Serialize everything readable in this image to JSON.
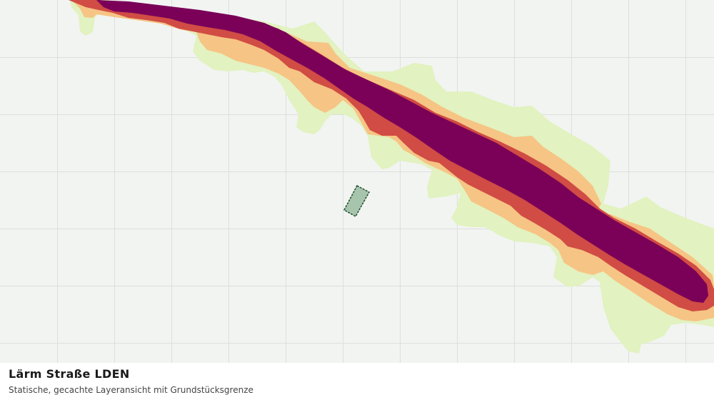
{
  "layer": {
    "title": "Lärm Straße LDEN",
    "subtitle": "Statische, gecachte Layeransicht mit Grundstücksgrenze"
  },
  "colors": {
    "background": "#f2f4f2",
    "grid": "#dcdfdc",
    "band_outer": "#e2f2c0",
    "band_mid": "#f6c484",
    "band_inner": "#d04c44",
    "band_core": "#7a0058",
    "parcel_fill": "#a7c4ad",
    "parcel_stroke": "#1d4d2a"
  },
  "icons": {
    "parcel": "parcel-polygon-icon"
  }
}
